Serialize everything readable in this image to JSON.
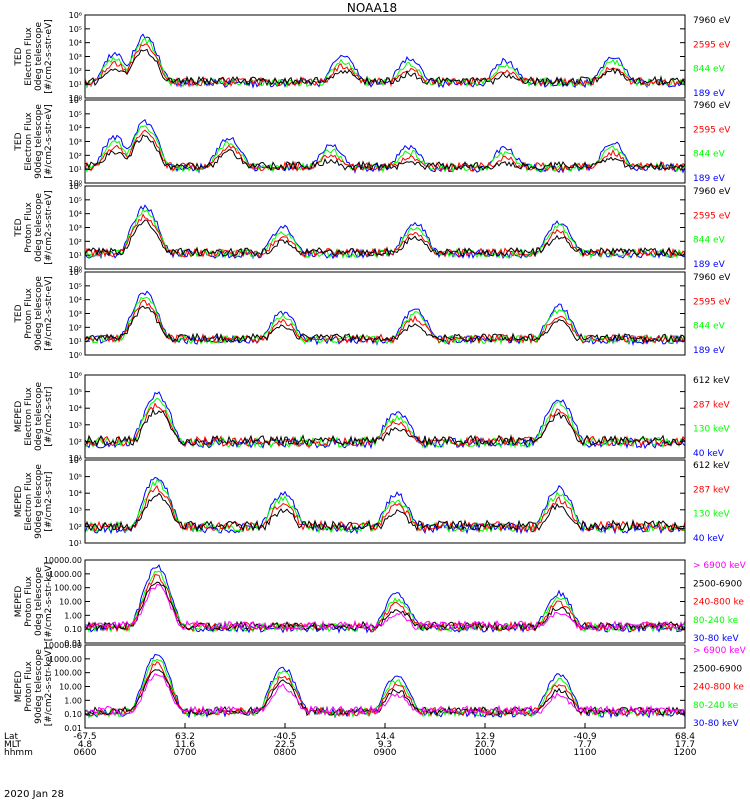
{
  "title": "NOAA18",
  "date_label": "2020 Jan 28",
  "colors": {
    "black": "#000000",
    "blue": "#0000ff",
    "green": "#00ff00",
    "red": "#ff0000",
    "magenta": "#ff00ff"
  },
  "chart_data": [
    {
      "type": "line",
      "ylabel": [
        "TED",
        "Electron Flux",
        "0deg telescope",
        "[#/cm2-s-str-eV]"
      ],
      "ylog": true,
      "ylim_exp": [
        0,
        6
      ],
      "tick_labels": [
        "10⁰",
        "10¹",
        "10²",
        "10³",
        "10⁴",
        "10⁵",
        "10⁶"
      ],
      "legend": [
        {
          "name": "7960 eV",
          "color": "black"
        },
        {
          "name": "2595 eV",
          "color": "red"
        },
        {
          "name": "844 eV",
          "color": "green"
        },
        {
          "name": "189 eV",
          "color": "blue"
        }
      ],
      "bursts": [
        [
          0.05,
          3.2
        ],
        [
          0.1,
          4.5
        ],
        [
          0.43,
          3.0
        ],
        [
          0.54,
          2.8
        ],
        [
          0.7,
          2.7
        ],
        [
          0.88,
          3.0
        ]
      ]
    },
    {
      "type": "line",
      "ylabel": [
        "TED",
        "Electron Flux",
        "90deg telescope",
        "[#/cm2-s-str-eV]"
      ],
      "ylog": true,
      "ylim_exp": [
        0,
        6
      ],
      "tick_labels": [
        "10⁰",
        "10¹",
        "10²",
        "10³",
        "10⁴",
        "10⁵",
        "10⁶"
      ],
      "legend": [
        {
          "name": "7960 eV",
          "color": "black"
        },
        {
          "name": "2595 eV",
          "color": "red"
        },
        {
          "name": "844 eV",
          "color": "green"
        },
        {
          "name": "189 eV",
          "color": "blue"
        }
      ],
      "bursts": [
        [
          0.05,
          3.3
        ],
        [
          0.1,
          4.4
        ],
        [
          0.24,
          3.3
        ],
        [
          0.41,
          2.7
        ],
        [
          0.54,
          2.6
        ],
        [
          0.7,
          2.5
        ],
        [
          0.88,
          2.9
        ]
      ]
    },
    {
      "type": "line",
      "ylabel": [
        "TED",
        "Proton Flux",
        "0deg telescope",
        "[#/cm2-s-str-eV]"
      ],
      "ylog": true,
      "ylim_exp": [
        0,
        6
      ],
      "tick_labels": [
        "10⁰",
        "10¹",
        "10²",
        "10³",
        "10⁴",
        "10⁵",
        "10⁶"
      ],
      "legend": [
        {
          "name": "7960 eV",
          "color": "black"
        },
        {
          "name": "2595 eV",
          "color": "red"
        },
        {
          "name": "844 eV",
          "color": "green"
        },
        {
          "name": "189 eV",
          "color": "blue"
        }
      ],
      "bursts": [
        [
          0.1,
          4.5
        ],
        [
          0.33,
          3.0
        ],
        [
          0.55,
          3.3
        ],
        [
          0.79,
          3.4
        ]
      ]
    },
    {
      "type": "line",
      "ylabel": [
        "TED",
        "Proton Flux",
        "90deg telescope",
        "[#/cm2-s-str-eV]"
      ],
      "ylog": true,
      "ylim_exp": [
        0,
        6
      ],
      "tick_labels": [
        "10⁰",
        "10¹",
        "10²",
        "10³",
        "10⁴",
        "10⁵",
        "10⁶"
      ],
      "legend": [
        {
          "name": "7960 eV",
          "color": "black"
        },
        {
          "name": "2595 eV",
          "color": "red"
        },
        {
          "name": "844 eV",
          "color": "green"
        },
        {
          "name": "189 eV",
          "color": "blue"
        }
      ],
      "bursts": [
        [
          0.1,
          4.5
        ],
        [
          0.33,
          3.1
        ],
        [
          0.55,
          3.3
        ],
        [
          0.79,
          3.5
        ]
      ]
    },
    {
      "type": "line",
      "ylabel": [
        "MEPED",
        "Electron Flux",
        "0deg telescope",
        "[#/cm2-s-str]"
      ],
      "ylog": true,
      "ylim_exp": [
        1,
        6
      ],
      "tick_labels": [
        "10¹",
        "10²",
        "10³",
        "10⁴",
        "10⁵",
        "10⁶"
      ],
      "legend": [
        {
          "name": "612 keV",
          "color": "black"
        },
        {
          "name": "287 keV",
          "color": "red"
        },
        {
          "name": "130 keV",
          "color": "green"
        },
        {
          "name": "40 keV",
          "color": "blue"
        }
      ],
      "bursts": [
        [
          0.12,
          4.9
        ],
        [
          0.52,
          3.8
        ],
        [
          0.79,
          4.6
        ]
      ]
    },
    {
      "type": "line",
      "ylabel": [
        "MEPED",
        "Electron Flux",
        "90deg telescope",
        "[#/cm2-s-str]"
      ],
      "ylog": true,
      "ylim_exp": [
        1,
        6
      ],
      "tick_labels": [
        "10¹",
        "10²",
        "10³",
        "10⁴",
        "10⁵",
        "10⁶"
      ],
      "legend": [
        {
          "name": "612 keV",
          "color": "black"
        },
        {
          "name": "287 keV",
          "color": "red"
        },
        {
          "name": "130 keV",
          "color": "green"
        },
        {
          "name": "40 keV",
          "color": "blue"
        }
      ],
      "bursts": [
        [
          0.12,
          5.0
        ],
        [
          0.33,
          4.0
        ],
        [
          0.52,
          3.9
        ],
        [
          0.79,
          4.3
        ]
      ]
    },
    {
      "type": "line",
      "ylabel": [
        "MEPED",
        "Proton Flux",
        "0deg telescope",
        "[#/cm2-s-str-keV]"
      ],
      "ylog": true,
      "ylim_exp": [
        -2,
        4
      ],
      "tick_labels": [
        "0.01",
        "0.10",
        "1.00",
        "10.00",
        "100.00",
        "1000.00",
        "10000.00"
      ],
      "legend": [
        {
          "name": "> 6900 keV",
          "color": "magenta"
        },
        {
          "name": "2500-6900",
          "color": "black"
        },
        {
          "name": "240-800 ke",
          "color": "red"
        },
        {
          "name": "80-240 ke",
          "color": "green"
        },
        {
          "name": "30-80 keV",
          "color": "blue"
        }
      ],
      "bursts": [
        [
          0.12,
          3.5
        ],
        [
          0.52,
          1.5
        ],
        [
          0.79,
          1.6
        ]
      ]
    },
    {
      "type": "line",
      "ylabel": [
        "MEPED",
        "Proton Flux",
        "90deg telescope",
        "[#/cm2-s-str-keV]"
      ],
      "ylog": true,
      "ylim_exp": [
        -2,
        4
      ],
      "tick_labels": [
        "0.01",
        "0.10",
        "1.00",
        "10.00",
        "100.00",
        "1000.00",
        "10000.00"
      ],
      "legend": [
        {
          "name": "> 6900 keV",
          "color": "magenta"
        },
        {
          "name": "2500-6900",
          "color": "black"
        },
        {
          "name": "240-800 ke",
          "color": "red"
        },
        {
          "name": "80-240 ke",
          "color": "green"
        },
        {
          "name": "30-80 keV",
          "color": "blue"
        }
      ],
      "bursts": [
        [
          0.12,
          3.3
        ],
        [
          0.33,
          2.4
        ],
        [
          0.52,
          1.8
        ],
        [
          0.79,
          1.8
        ]
      ]
    }
  ],
  "x_axis": {
    "row_labels": [
      "Lat",
      "MLT",
      "hhmm"
    ],
    "ticks": [
      {
        "Lat": "-67.5",
        "MLT": "4.8",
        "hhmm": "0600"
      },
      {
        "Lat": "63.2",
        "MLT": "11.6",
        "hhmm": "0700"
      },
      {
        "Lat": "-40.5",
        "MLT": "22.5",
        "hhmm": "0800"
      },
      {
        "Lat": "14.4",
        "MLT": "9.3",
        "hhmm": "0900"
      },
      {
        "Lat": "12.9",
        "MLT": "20.7",
        "hhmm": "1000"
      },
      {
        "Lat": "-40.9",
        "MLT": "7.7",
        "hhmm": "1100"
      },
      {
        "Lat": "68.4",
        "MLT": "17.7",
        "hhmm": "1200"
      }
    ]
  }
}
